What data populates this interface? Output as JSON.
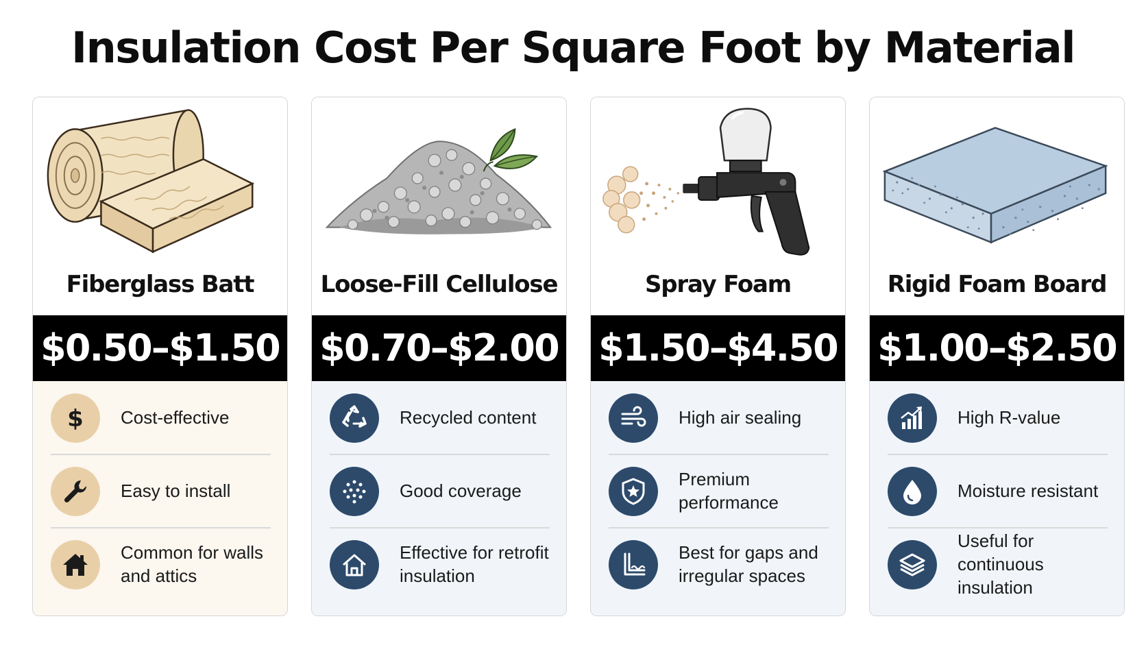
{
  "title": "Insulation Cost Per Square Foot by Material",
  "colors": {
    "warm_feature_bg": "#fcf7ef",
    "cool_feature_bg": "#f1f5fa",
    "warm_icon": "#e9cfa8",
    "cool_icon": "#2d4a6b",
    "price_band": "#000000"
  },
  "cards": [
    {
      "name": "Fiberglass Batt",
      "illustration": "fiberglass-roll",
      "price": "$0.50–$1.50",
      "features": [
        {
          "icon": "dollar-icon",
          "text": "Cost-effective"
        },
        {
          "icon": "wrench-icon",
          "text": "Easy to install"
        },
        {
          "icon": "house-icon",
          "text": "Common for walls and attics"
        }
      ]
    },
    {
      "name": "Loose-Fill Cellulose",
      "illustration": "cellulose-pile",
      "price": "$0.70–$2.00",
      "features": [
        {
          "icon": "recycle-icon",
          "text": "Recycled content"
        },
        {
          "icon": "dots-icon",
          "text": "Good coverage"
        },
        {
          "icon": "house-outline-icon",
          "text": "Effective for retrofit insulation"
        }
      ]
    },
    {
      "name": "Spray Foam",
      "illustration": "spray-gun",
      "price": "$1.50–$4.50",
      "features": [
        {
          "icon": "wind-icon",
          "text": "High air sealing"
        },
        {
          "icon": "shield-star-icon",
          "text": "Premium performance"
        },
        {
          "icon": "gap-corner-icon",
          "text": "Best for gaps and irregular spaces"
        }
      ]
    },
    {
      "name": "Rigid Foam Board",
      "illustration": "foam-board",
      "price": "$1.00–$2.50",
      "features": [
        {
          "icon": "bar-chart-icon",
          "text": "High R-value"
        },
        {
          "icon": "water-drop-icon",
          "text": "Moisture resistant"
        },
        {
          "icon": "layers-icon",
          "text": "Useful for continuous insulation"
        }
      ]
    }
  ]
}
